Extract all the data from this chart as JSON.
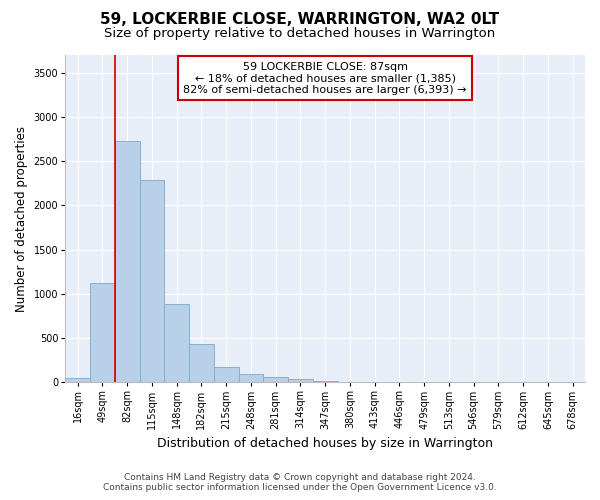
{
  "title": "59, LOCKERBIE CLOSE, WARRINGTON, WA2 0LT",
  "subtitle": "Size of property relative to detached houses in Warrington",
  "xlabel": "Distribution of detached houses by size in Warrington",
  "ylabel": "Number of detached properties",
  "categories": [
    "16sqm",
    "49sqm",
    "82sqm",
    "115sqm",
    "148sqm",
    "182sqm",
    "215sqm",
    "248sqm",
    "281sqm",
    "314sqm",
    "347sqm",
    "380sqm",
    "413sqm",
    "446sqm",
    "479sqm",
    "513sqm",
    "546sqm",
    "579sqm",
    "612sqm",
    "645sqm",
    "678sqm"
  ],
  "values": [
    50,
    1120,
    2730,
    2290,
    880,
    430,
    175,
    100,
    60,
    40,
    20,
    8,
    4,
    1,
    0,
    0,
    0,
    0,
    0,
    0,
    0
  ],
  "bar_color": "#b8d0e8",
  "bar_edge_color": "#7aaad0",
  "red_line_index": 2,
  "annotation_text": "59 LOCKERBIE CLOSE: 87sqm\n← 18% of detached houses are smaller (1,385)\n82% of semi-detached houses are larger (6,393) →",
  "annotation_box_color": "#ffffff",
  "annotation_box_edge_color": "#cc0000",
  "vline_color": "#cc0000",
  "ylim": [
    0,
    3700
  ],
  "yticks": [
    0,
    500,
    1000,
    1500,
    2000,
    2500,
    3000,
    3500
  ],
  "footer_line1": "Contains HM Land Registry data © Crown copyright and database right 2024.",
  "footer_line2": "Contains public sector information licensed under the Open Government Licence v3.0.",
  "plot_bg_color": "#e8eef8",
  "title_fontsize": 11,
  "subtitle_fontsize": 9.5,
  "xlabel_fontsize": 9,
  "ylabel_fontsize": 8.5,
  "tick_fontsize": 7,
  "annotation_fontsize": 8,
  "footer_fontsize": 6.5
}
